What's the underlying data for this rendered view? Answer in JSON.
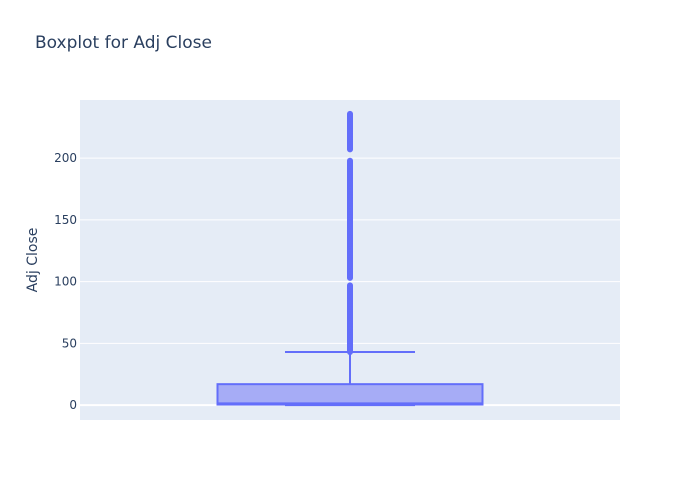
{
  "chart_data": {
    "type": "box",
    "title": "Boxplot for Adj Close",
    "xlabel": "",
    "ylabel": "Adj Close",
    "ylim": [
      -12,
      247
    ],
    "yticks": [
      0,
      50,
      100,
      150,
      200
    ],
    "grid": true,
    "series": [
      {
        "min": 0,
        "q1": 0.5,
        "median": 1.5,
        "q3": 17,
        "upper_fence": 43,
        "outlier_ranges": [
          [
            43,
            97
          ],
          [
            103,
            198
          ],
          [
            207,
            236
          ]
        ]
      }
    ],
    "colors": {
      "box_fill": "#a6acf6",
      "box_line": "#636efa",
      "plot_bg": "#e5ecf6",
      "grid": "#ffffff",
      "text": "#2a3f5f"
    }
  }
}
